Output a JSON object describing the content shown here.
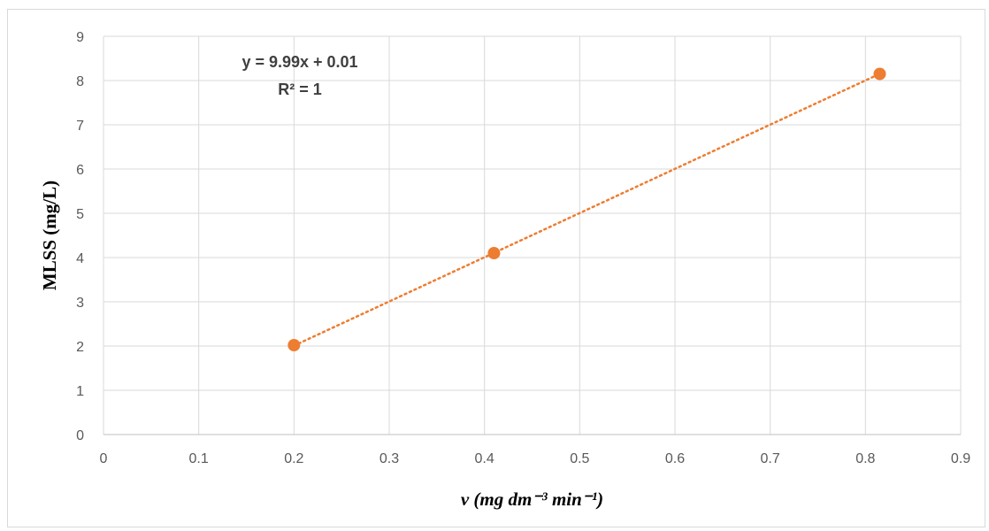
{
  "chart_data": {
    "type": "scatter",
    "title": "",
    "xlabel": "v (mg dm⁻³ min⁻¹)",
    "ylabel": "MLSS (mg/L)",
    "xlim": [
      0,
      0.9
    ],
    "ylim": [
      0,
      9
    ],
    "xticks": [
      "0",
      "0.1",
      "0.2",
      "0.3",
      "0.4",
      "0.5",
      "0.6",
      "0.7",
      "0.8",
      "0.9"
    ],
    "yticks": [
      "0",
      "1",
      "2",
      "3",
      "4",
      "5",
      "6",
      "7",
      "8",
      "9"
    ],
    "grid": true,
    "legend": "none",
    "series": [
      {
        "x": [
          0.2,
          0.41,
          0.815
        ],
        "y": [
          2.02,
          4.1,
          8.15
        ],
        "color": "#ed7d31"
      }
    ],
    "trendline": {
      "type": "linear",
      "slope": 9.99,
      "intercept": 0.01,
      "style": "dotted",
      "color": "#ed7d31",
      "x_range": [
        0.2,
        0.815
      ]
    },
    "annotations": [
      "y = 9.99x + 0.01",
      "R² = 1"
    ]
  }
}
